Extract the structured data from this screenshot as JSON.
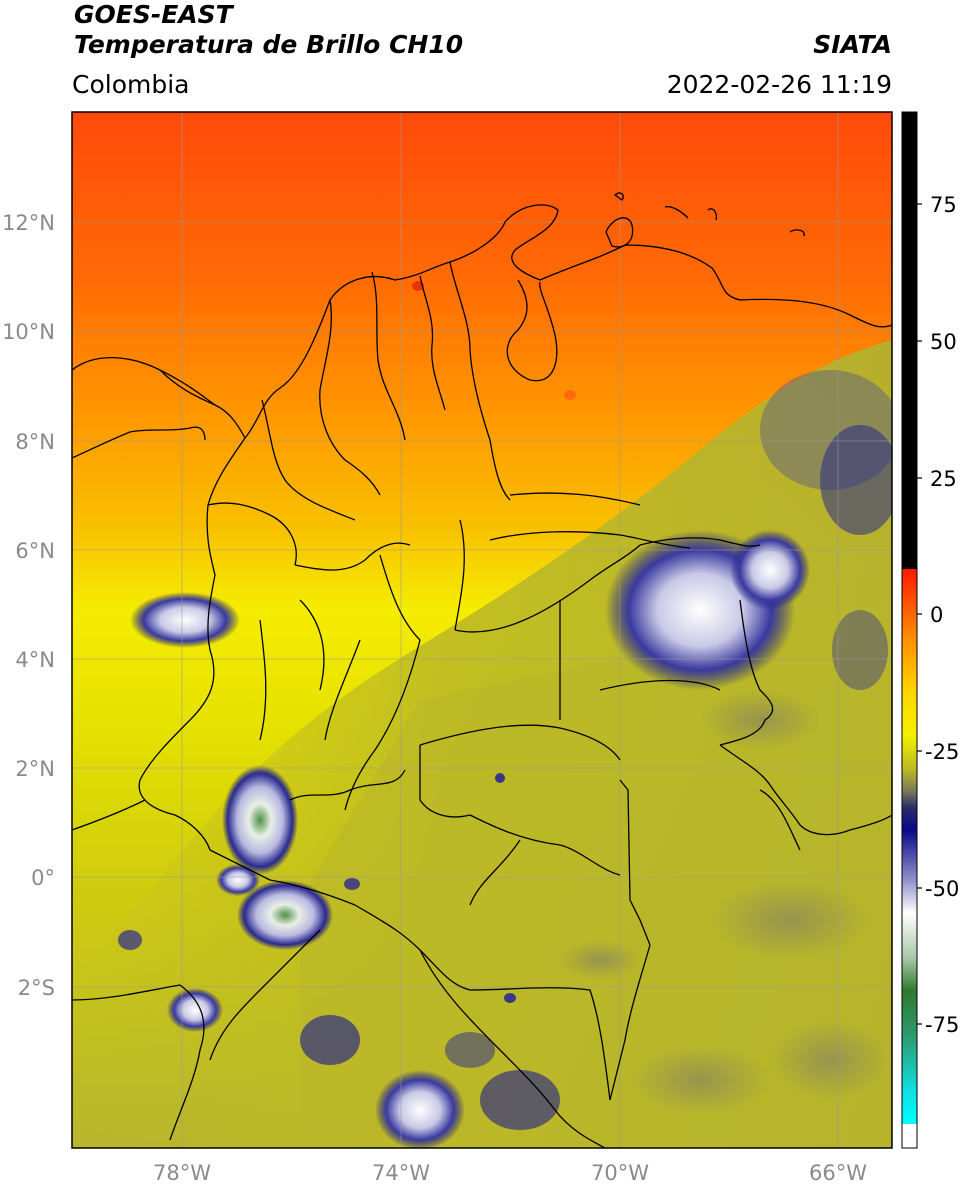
{
  "header": {
    "title_line1": "GOES-EAST",
    "title_line2": "Temperatura de Brillo CH10",
    "brand": "SIATA",
    "region": "Colombia",
    "timestamp": "2022-02-26 11:19"
  },
  "map": {
    "lat_labels": [
      "12°N",
      "10°N",
      "8°N",
      "6°N",
      "4°N",
      "2°N",
      "0°",
      "2°S"
    ],
    "lon_labels": [
      "78°W",
      "74°W",
      "70°W",
      "66°W"
    ]
  },
  "colorbar": {
    "tick_labels": [
      "75",
      "50",
      "25",
      "0",
      "-25",
      "-50",
      "-75"
    ]
  },
  "colors": {
    "warm_top": "#ff5a0a",
    "yellow": "#f5f000",
    "olive": "#b9b62e",
    "cold_blue": "#1a1a80",
    "border": "#000000"
  }
}
